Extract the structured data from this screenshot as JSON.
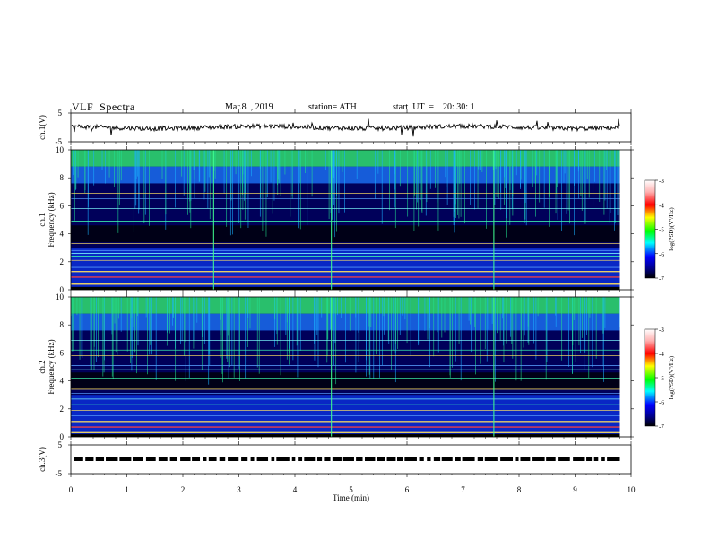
{
  "header": {
    "title": "VLF  Spectra",
    "date": "Mar.8  , 2019",
    "station": "station= ATH",
    "start": "start  UT  =    20: 30: 1"
  },
  "colors": {
    "background": "#ffffff",
    "trace": "#000000",
    "spectrogram_low": "#000014",
    "spectrogram_high": "#ff0000"
  },
  "chart_data": [
    {
      "type": "line",
      "panel": "ch1-waveform",
      "ylabel": "ch.1(V)",
      "ylim": [
        -5,
        5
      ],
      "yticks": [
        "5",
        "-5"
      ],
      "baseline": 0,
      "xlim": [
        0,
        10
      ]
    },
    {
      "type": "heatmap",
      "panel": "ch1-spectrogram",
      "ylabel": "ch.1\nFrequency (kHz)",
      "ylim": [
        0,
        10
      ],
      "yticks": [
        "0",
        "2",
        "4",
        "6",
        "8",
        "10"
      ],
      "xlim": [
        0,
        10
      ],
      "data_extent_min": 9.8,
      "colorbar": {
        "label": "log(PSD)(V²/Hz)",
        "range": [
          -7,
          -3
        ],
        "ticks": [
          "-3",
          "-4",
          "-5",
          "-6",
          "-7"
        ]
      },
      "lines_khz": [
        0.4,
        0.9,
        1.3,
        1.6,
        2.1,
        2.4,
        2.6,
        2.8,
        3.3,
        4.9,
        5.8,
        6.5,
        6.9
      ],
      "vertical_features_min": [
        2.55,
        4.65,
        7.55
      ]
    },
    {
      "type": "heatmap",
      "panel": "ch2-spectrogram",
      "ylabel": "ch.2\nFrequency (kHz)",
      "ylim": [
        0,
        10
      ],
      "yticks": [
        "0",
        "2",
        "4",
        "6",
        "8",
        "10"
      ],
      "xlim": [
        0,
        10
      ],
      "data_extent_min": 9.8,
      "colorbar": {
        "label": "log(PSD)(V²/Hz)",
        "range": [
          -7,
          -3
        ],
        "ticks": [
          "-3",
          "-4",
          "-5",
          "-6",
          "-7"
        ]
      },
      "lines_khz": [
        0.3,
        0.7,
        1.1,
        1.5,
        1.9,
        2.3,
        2.7,
        3.1,
        3.4,
        4.2,
        4.8,
        5.1,
        5.8,
        6.2,
        6.9
      ],
      "vertical_features_min": [
        4.65,
        7.55
      ]
    },
    {
      "type": "line",
      "panel": "ch3-waveform",
      "ylabel": "ch.3(V)",
      "ylim": [
        -5,
        5
      ],
      "yticks": [
        "5",
        "-5"
      ],
      "baseline": 0,
      "xlim": [
        0,
        10
      ],
      "xlabel": "Time  (min)",
      "xticks": [
        "0",
        "1",
        "2",
        "3",
        "4",
        "5",
        "6",
        "7",
        "8",
        "9",
        "10"
      ]
    }
  ]
}
